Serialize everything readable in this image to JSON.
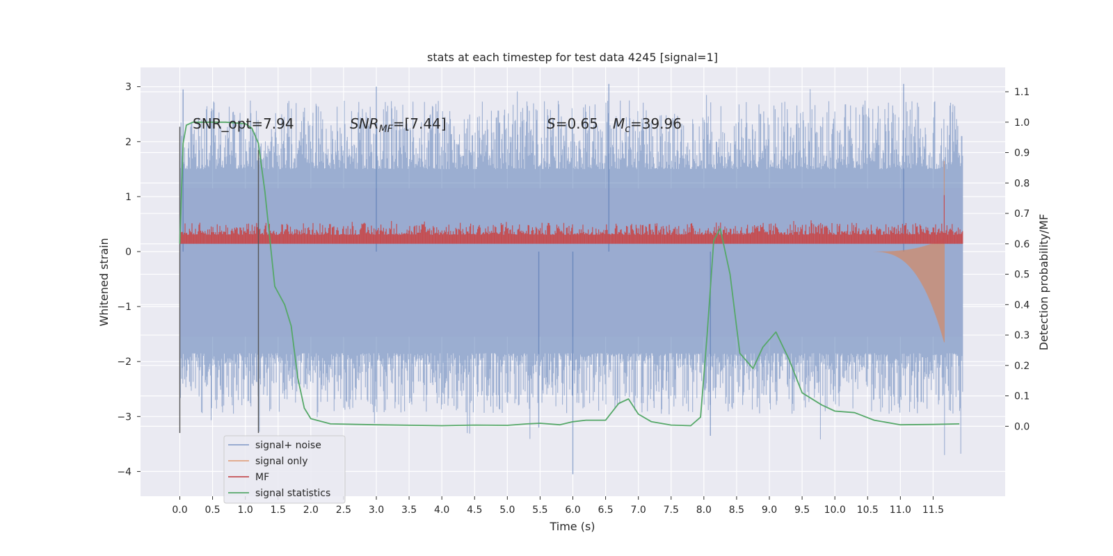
{
  "title": "stats at each timestep for test data 4245 [signal=1]",
  "colors": {
    "background": "#eaeaf2",
    "grid": "#ffffff",
    "signal_noise": "#4c72b0",
    "signal_only": "#dd8452",
    "mf": "#c44e52",
    "statistics": "#55a868",
    "marker": "#555555"
  },
  "annotations": {
    "snr_opt": "SNR_opt=7.94",
    "snr_mf_prefix": "SNR",
    "snr_mf_sub": "MF",
    "snr_mf_value": "=[7.44]",
    "s_letter": "S",
    "s_value": "=0.65",
    "mc_letter": "M",
    "mc_sub": "c",
    "mc_value": "=39.96"
  },
  "chart_data": {
    "type": "line",
    "title": "stats at each timestep for test data 4245 [signal=1]",
    "xlabel": "Time (s)",
    "ylabel": "Whitened strain",
    "y2label": "Detection probability/MF",
    "xlim": [
      -0.6,
      12.6
    ],
    "ylim": [
      -4.45,
      3.35
    ],
    "y2lim": [
      -0.23,
      1.18
    ],
    "grid": true,
    "legend_position": "lower-left",
    "x_ticks": [
      0.0,
      0.5,
      1.0,
      1.5,
      2.0,
      2.5,
      3.0,
      3.5,
      4.0,
      4.5,
      5.0,
      5.5,
      6.0,
      6.5,
      7.0,
      7.5,
      8.0,
      8.5,
      9.0,
      9.5,
      10.0,
      10.5,
      11.0,
      11.5
    ],
    "x_tick_labels": [
      "0.0",
      "0.5",
      "1.0",
      "1.5",
      "2.0",
      "2.5",
      "3.0",
      "3.5",
      "4.0",
      "4.5",
      "5.0",
      "5.5",
      "6.0",
      "6.5",
      "7.0",
      "7.5",
      "8.0",
      "8.5",
      "9.0",
      "9.5",
      "10.0",
      "10.5",
      "11.0",
      "11.5"
    ],
    "y_ticks": [
      3,
      2,
      1,
      0,
      -1,
      -2,
      -3,
      -4
    ],
    "y_tick_labels": [
      "3",
      "2",
      "1",
      "0",
      "−1",
      "−2",
      "−3",
      "−4"
    ],
    "y2_ticks": [
      1.1,
      1.0,
      0.9,
      0.8,
      0.7,
      0.6,
      0.5,
      0.4,
      0.3,
      0.2,
      0.1,
      0.0
    ],
    "y2_tick_labels": [
      "1.1",
      "1.0",
      "0.9",
      "0.8",
      "0.7",
      "0.6",
      "0.5",
      "0.4",
      "0.3",
      "0.2",
      "0.1",
      "0.0"
    ],
    "series": [
      {
        "name": "signal+ noise",
        "kind": "noise_band",
        "x_range": [
          0.0,
          11.95
        ],
        "y_core": [
          -1.55,
          1.15
        ],
        "y_extreme": [
          -4.05,
          3.05
        ]
      },
      {
        "name": "signal only",
        "kind": "chirp",
        "x_range": [
          10.5,
          11.95
        ],
        "peak_x": 11.67,
        "peak_y": [
          -1.65,
          1.65
        ]
      },
      {
        "name": "MF",
        "kind": "mf_band",
        "axis": "right",
        "x_range": [
          0.0,
          11.95
        ],
        "y_base": 0.6,
        "y_top": [
          0.63,
          0.67
        ],
        "spike_x": 11.67,
        "spike_y": 0.76
      },
      {
        "name": "signal statistics",
        "axis": "right",
        "x": [
          0.0,
          0.05,
          0.1,
          0.2,
          0.4,
          0.7,
          1.0,
          1.1,
          1.2,
          1.3,
          1.45,
          1.6,
          1.7,
          1.8,
          1.9,
          2.0,
          2.3,
          3.0,
          4.0,
          4.5,
          5.0,
          5.3,
          5.5,
          5.8,
          6.0,
          6.2,
          6.5,
          6.7,
          6.85,
          7.0,
          7.2,
          7.5,
          7.8,
          7.95,
          8.05,
          8.15,
          8.25,
          8.4,
          8.55,
          8.75,
          8.9,
          9.1,
          9.3,
          9.5,
          9.8,
          10.0,
          10.3,
          10.6,
          11.0,
          11.5,
          11.9
        ],
        "y": [
          0.6,
          0.93,
          0.99,
          1.0,
          1.0,
          1.0,
          0.995,
          0.98,
          0.93,
          0.77,
          0.46,
          0.4,
          0.33,
          0.16,
          0.06,
          0.025,
          0.008,
          0.005,
          0.002,
          0.004,
          0.003,
          0.008,
          0.01,
          0.005,
          0.015,
          0.02,
          0.02,
          0.075,
          0.09,
          0.04,
          0.015,
          0.004,
          0.002,
          0.03,
          0.3,
          0.61,
          0.65,
          0.5,
          0.24,
          0.19,
          0.26,
          0.31,
          0.22,
          0.11,
          0.07,
          0.05,
          0.045,
          0.02,
          0.005,
          0.006,
          0.008
        ]
      },
      {
        "name": "",
        "kind": "marker_line",
        "x": 0.0,
        "y_range": [
          -3.3,
          2.27
        ]
      },
      {
        "name": "",
        "kind": "marker_line",
        "x": 1.2,
        "y_range": [
          -3.3,
          1.85
        ]
      }
    ]
  }
}
